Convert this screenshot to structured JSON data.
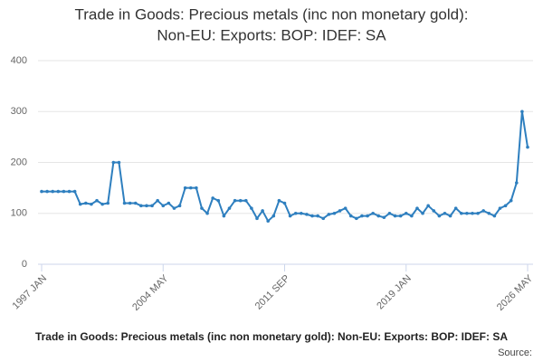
{
  "chart_data": {
    "type": "line",
    "title": [
      "Trade in Goods: Precious metals (inc non monetary gold):",
      "Non-EU: Exports: BOP: IDEF: SA"
    ],
    "footer_title": "Trade in Goods: Precious metals (inc non monetary gold): Non-EU: Exports: BOP: IDEF: SA",
    "source_label": "Source:",
    "categories": [
      "1997 JAN",
      null,
      null,
      null,
      null,
      null,
      null,
      null,
      null,
      null,
      null,
      null,
      null,
      null,
      null,
      null,
      null,
      null,
      null,
      null,
      null,
      null,
      "2004 MAY",
      null,
      null,
      null,
      null,
      null,
      null,
      null,
      null,
      null,
      null,
      null,
      null,
      null,
      null,
      null,
      null,
      null,
      null,
      null,
      null,
      null,
      "2011 SEP",
      null,
      null,
      null,
      null,
      null,
      null,
      null,
      null,
      null,
      null,
      null,
      null,
      null,
      null,
      null,
      null,
      null,
      null,
      null,
      null,
      null,
      "2019 JAN",
      null,
      null,
      null,
      null,
      null,
      null,
      null,
      null,
      null,
      null,
      null,
      null,
      null,
      null,
      null,
      null,
      null,
      null,
      null,
      null,
      null,
      "2026 MAY"
    ],
    "series": [
      {
        "name": "Trade in Goods: Precious metals (inc non monetary gold): Non-EU: Exports: BOP: IDEF: SA",
        "color": "#2e7fbf",
        "values": [
          143,
          143,
          143,
          143,
          143,
          143,
          143,
          118,
          120,
          118,
          125,
          118,
          120,
          200,
          200,
          120,
          120,
          120,
          115,
          115,
          115,
          125,
          115,
          120,
          110,
          115,
          150,
          150,
          150,
          110,
          100,
          130,
          125,
          95,
          110,
          125,
          125,
          125,
          110,
          90,
          105,
          85,
          95,
          125,
          120,
          95,
          100,
          100,
          98,
          95,
          95,
          90,
          98,
          100,
          105,
          110,
          95,
          90,
          95,
          95,
          100,
          95,
          92,
          100,
          95,
          95,
          100,
          95,
          110,
          100,
          115,
          105,
          95,
          100,
          95,
          110,
          100,
          100,
          100,
          100,
          105,
          100,
          95,
          110,
          115,
          125,
          160,
          300,
          230
        ]
      }
    ],
    "ylim": [
      0,
      400
    ],
    "yticks": [
      0,
      100,
      200,
      300,
      400
    ],
    "grid": true
  }
}
